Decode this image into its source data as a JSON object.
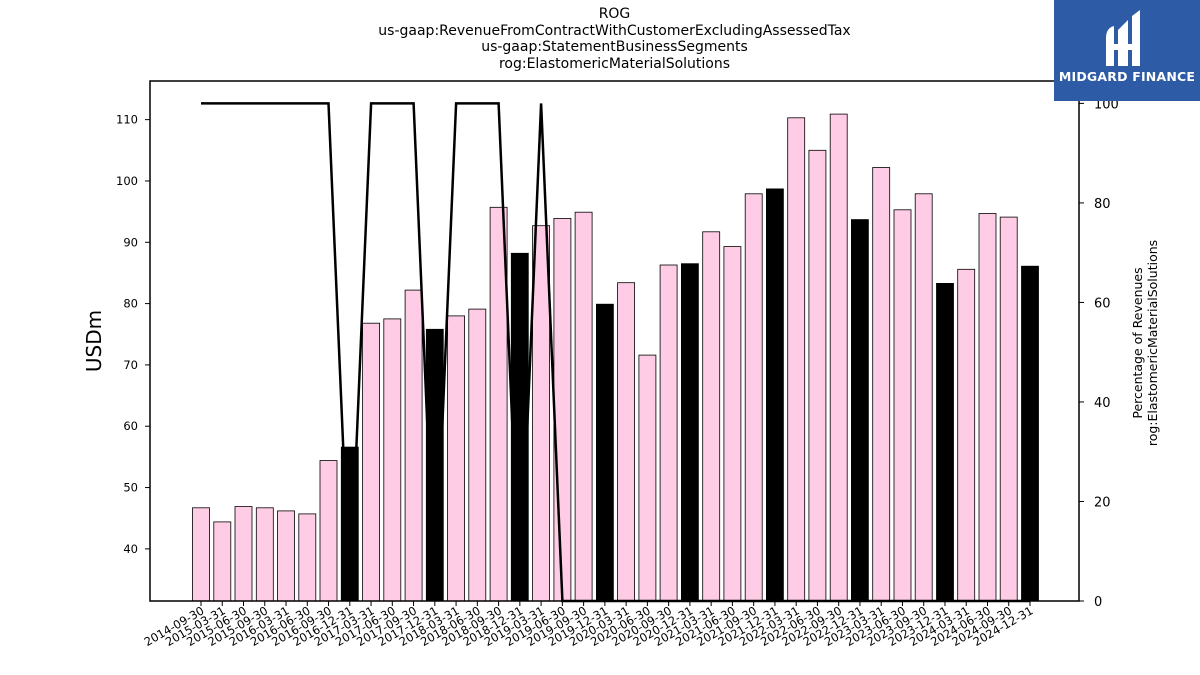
{
  "logo": {
    "text": "MIDGARD FINANCE",
    "icon": "midgard-m-logo-icon",
    "bg_color": "#2d5ba6"
  },
  "chart_data": {
    "type": "bar",
    "title_lines": [
      "ROG",
      "us-gaap:RevenueFromContractWithCustomerExcludingAssessedTax",
      "us-gaap:StatementBusinessSegments",
      "rog:ElastomericMaterialSolutions"
    ],
    "ylabel": "USDm",
    "y2label_lines": [
      "Percentage of Revenues",
      "rog:ElastomericMaterialSolutions"
    ],
    "ylim": [
      31.5,
      116.3
    ],
    "y_ticks": [
      40,
      50,
      60,
      70,
      80,
      90,
      100,
      110
    ],
    "y2lim": [
      0,
      104.5
    ],
    "y2_ticks": [
      0,
      20,
      40,
      60,
      80,
      100
    ],
    "grid": false,
    "categories": [
      "2014-09-30",
      "2015-03-31",
      "2015-06-30",
      "2015-09-30",
      "2016-03-31",
      "2016-06-30",
      "2016-09-30",
      "2016-12-31",
      "2017-03-31",
      "2017-06-30",
      "2017-09-30",
      "2017-12-31",
      "2018-03-31",
      "2018-06-30",
      "2018-09-30",
      "2018-12-31",
      "2019-03-31",
      "2019-06-30",
      "2019-09-30",
      "2019-12-31",
      "2020-03-31",
      "2020-06-30",
      "2020-09-30",
      "2020-12-31",
      "2021-03-31",
      "2021-06-30",
      "2021-09-30",
      "2021-12-31",
      "2022-03-31",
      "2022-06-30",
      "2022-09-30",
      "2022-12-31",
      "2023-03-31",
      "2023-06-30",
      "2023-09-30",
      "2023-12-31",
      "2024-03-31",
      "2024-06-30",
      "2024-09-30",
      "2024-12-31"
    ],
    "series": [
      {
        "kind": "bar",
        "values": [
          46.7,
          44.4,
          46.9,
          46.7,
          46.2,
          45.7,
          54.4,
          56.6,
          76.8,
          77.5,
          82.2,
          75.8,
          78.0,
          79.1,
          95.7,
          88.2,
          92.7,
          93.9,
          94.9,
          79.9,
          83.4,
          71.6,
          86.3,
          86.5,
          91.7,
          89.3,
          97.9,
          98.7,
          110.3,
          105.0,
          110.9,
          93.7,
          102.2,
          95.3,
          97.9,
          83.3,
          85.6,
          94.7,
          94.1,
          86.1
        ],
        "highlight": [
          false,
          false,
          false,
          false,
          false,
          false,
          false,
          true,
          false,
          false,
          false,
          true,
          false,
          false,
          false,
          true,
          false,
          false,
          false,
          true,
          false,
          false,
          false,
          true,
          false,
          false,
          false,
          true,
          false,
          false,
          false,
          true,
          false,
          false,
          false,
          true,
          false,
          false,
          false,
          true
        ],
        "color": "#ffcce6",
        "highlight_color": "#000000"
      },
      {
        "kind": "line",
        "axis": "right",
        "values": [
          100,
          100,
          100,
          100,
          100,
          100,
          100,
          0,
          100,
          100,
          100,
          0,
          100,
          100,
          100,
          0,
          100,
          0,
          0,
          0,
          0,
          0,
          0,
          0,
          0,
          0,
          0,
          0,
          0,
          0,
          0,
          0,
          0,
          0,
          0,
          0,
          0,
          0,
          0,
          0
        ],
        "color": "#000000"
      }
    ]
  }
}
